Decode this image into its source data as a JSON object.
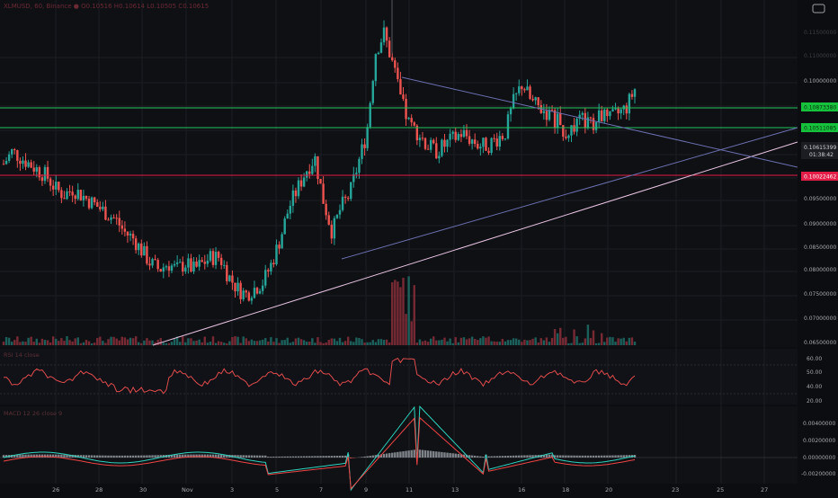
{
  "header": {
    "symbol_line": "XLMUSD, 60, Binance ● O0.10516 H0.10614 L0.10505 C0.10615",
    "settings_icon": "square-icon"
  },
  "price_scale": {
    "ticks": [
      "0.11000000",
      "0.10500000",
      "0.10000000",
      "0.09500000",
      "0.09000000",
      "0.08500000",
      "0.08000000",
      "0.07500000",
      "0.07000000",
      "0.06500000"
    ],
    "upper_hidden_ticks": [
      "0.11500000"
    ]
  },
  "price_tags": {
    "green_upper": "0.10873380",
    "green_lower": "0.10511085",
    "current_price": "0.10615399",
    "countdown": "01:38:42",
    "red_level": "0.10022462"
  },
  "rsi_pane": {
    "label": "RSI 14 close",
    "ticks": [
      "60.00",
      "50.00",
      "40.00",
      "20.00"
    ]
  },
  "macd_pane": {
    "label": "MACD 12 26 close 9",
    "ticks": [
      "0.00400000",
      "0.00200000",
      "0.00000000",
      "-0.00200000"
    ]
  },
  "time_axis": {
    "labels": [
      "26",
      "28",
      "30",
      "Nov",
      "3",
      "5",
      "7",
      "9",
      "11",
      "13",
      "16",
      "18",
      "20",
      "23",
      "25",
      "27"
    ]
  },
  "colors": {
    "background": "#0c0d10",
    "up_candle": "#26a69a",
    "down_candle": "#ef5350",
    "green_level": "#22c55e",
    "red_level": "#e11d48",
    "rsi_line": "#e04b4b",
    "macd_line": "#2dd4bf",
    "signal_line": "#ef4444",
    "trend_line": "#e8c3e2"
  },
  "chart_data": {
    "type": "candlestick",
    "title": "",
    "xlabel": "",
    "ylabel": "",
    "ylim": [
      0.065,
      0.117
    ],
    "x_labels": [
      "26",
      "28",
      "30",
      "Nov",
      "3",
      "5",
      "7",
      "9",
      "11",
      "13",
      "16",
      "18",
      "20",
      "23",
      "25",
      "27"
    ],
    "close_series_approx": [
      0.094,
      0.096,
      0.095,
      0.094,
      0.093,
      0.092,
      0.09,
      0.089,
      0.09,
      0.089,
      0.088,
      0.087,
      0.086,
      0.085,
      0.083,
      0.082,
      0.08,
      0.078,
      0.077,
      0.078,
      0.077,
      0.078,
      0.077,
      0.078,
      0.079,
      0.079,
      0.076,
      0.074,
      0.073,
      0.074,
      0.075,
      0.078,
      0.082,
      0.087,
      0.09,
      0.093,
      0.095,
      0.088,
      0.083,
      0.087,
      0.089,
      0.094,
      0.099,
      0.112,
      0.115,
      0.11,
      0.104,
      0.1,
      0.099,
      0.097,
      0.096,
      0.097,
      0.098,
      0.099,
      0.098,
      0.097,
      0.097,
      0.098,
      0.099,
      0.104,
      0.107,
      0.104,
      0.103,
      0.102,
      0.101,
      0.099,
      0.1,
      0.101,
      0.1,
      0.102,
      0.101,
      0.102,
      0.103,
      0.106
    ],
    "horizontal_levels": [
      0.1087338,
      0.10511085,
      0.10022462
    ],
    "current_price": 0.10615399
  }
}
